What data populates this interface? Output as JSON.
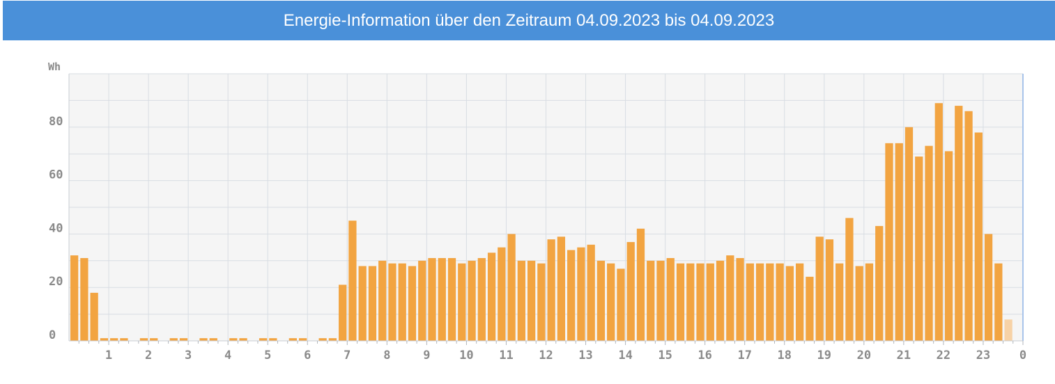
{
  "title": "Energie-Information über den Zeitraum 04.09.2023 bis 04.09.2023",
  "colors": {
    "header": "#4a90d9",
    "bar": "#f2a441",
    "bar_current": "#f7d2a6",
    "plot_bg": "#f5f5f5",
    "grid": "#d8dde3"
  },
  "chart_data": {
    "type": "bar",
    "title": "Energie-Information über den Zeitraum 04.09.2023 bis 04.09.2023",
    "xlabel": "",
    "ylabel": "Wh",
    "ylim": [
      0,
      100
    ],
    "grid": true,
    "legend": "none",
    "x_ticks": [
      "1",
      "2",
      "3",
      "4",
      "5",
      "6",
      "7",
      "8",
      "9",
      "10",
      "11",
      "12",
      "13",
      "14",
      "15",
      "16",
      "17",
      "18",
      "19",
      "20",
      "21",
      "22",
      "23",
      "0"
    ],
    "y_ticks": [
      "0",
      "20",
      "40",
      "60",
      "80"
    ],
    "interval": "15 min",
    "values": [
      32,
      31,
      18,
      1,
      1,
      1,
      0,
      1,
      1,
      0,
      1,
      1,
      0,
      1,
      1,
      0,
      1,
      1,
      0,
      1,
      1,
      0,
      1,
      1,
      0,
      1,
      1,
      21,
      45,
      28,
      28,
      30,
      29,
      29,
      28,
      30,
      31,
      31,
      31,
      29,
      30,
      31,
      33,
      35,
      40,
      30,
      30,
      29,
      38,
      39,
      34,
      35,
      36,
      30,
      29,
      27,
      37,
      42,
      30,
      30,
      31,
      29,
      29,
      29,
      29,
      30,
      32,
      31,
      29,
      29,
      29,
      29,
      28,
      29,
      24,
      39,
      38,
      29,
      46,
      28,
      29,
      43,
      74,
      74,
      80,
      69,
      73,
      89,
      71,
      88,
      86,
      78,
      40,
      29,
      8
    ],
    "last_value_partial": true
  }
}
